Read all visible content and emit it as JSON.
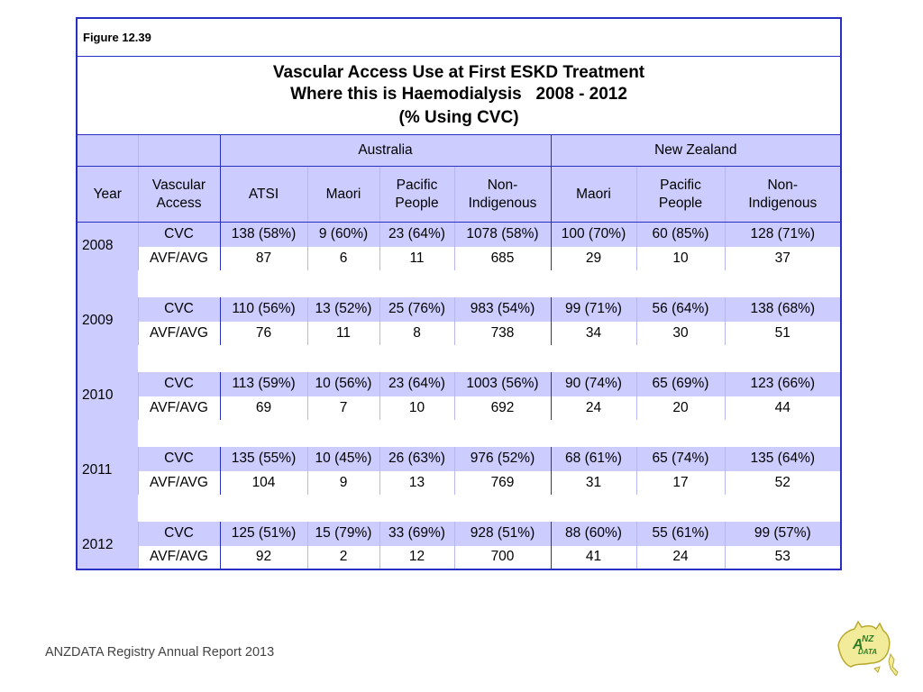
{
  "figure_label": "Figure 12.39",
  "title": {
    "line1": "Vascular Access Use at First ESKD Treatment",
    "line2": "Where this is Haemodialysis   2008 - 2012",
    "line3": "(% Using CVC)"
  },
  "regions": {
    "australia": "Australia",
    "new_zealand": "New Zealand"
  },
  "columns": {
    "year": "Year",
    "vascular_access": [
      "Vascular",
      "Access"
    ],
    "atsi": "ATSI",
    "au_maori": "Maori",
    "au_pacific": [
      "Pacific",
      "People"
    ],
    "au_non_indigenous": [
      "Non-",
      "Indigenous"
    ],
    "nz_maori": "Maori",
    "nz_pacific": [
      "Pacific",
      "People"
    ],
    "nz_non_indigenous": [
      "Non-",
      "Indigenous"
    ]
  },
  "rows": [
    {
      "year": "2008",
      "cvc": {
        "label": "CVC",
        "values": [
          "138 (58%)",
          "9 (60%)",
          "23 (64%)",
          "1078 (58%)",
          "100 (70%)",
          "60 (85%)",
          "128 (71%)"
        ]
      },
      "avf": {
        "label": "AVF/AVG",
        "values": [
          "87",
          "6",
          "11",
          "685",
          "29",
          "10",
          "37"
        ]
      }
    },
    {
      "year": "2009",
      "cvc": {
        "label": "CVC",
        "values": [
          "110 (56%)",
          "13 (52%)",
          "25 (76%)",
          "983 (54%)",
          "99 (71%)",
          "56 (64%)",
          "138 (68%)"
        ]
      },
      "avf": {
        "label": "AVF/AVG",
        "values": [
          "76",
          "11",
          "8",
          "738",
          "34",
          "30",
          "51"
        ]
      }
    },
    {
      "year": "2010",
      "cvc": {
        "label": "CVC",
        "values": [
          "113 (59%)",
          "10 (56%)",
          "23 (64%)",
          "1003 (56%)",
          "90 (74%)",
          "65 (69%)",
          "123 (66%)"
        ]
      },
      "avf": {
        "label": "AVF/AVG",
        "values": [
          "69",
          "7",
          "10",
          "692",
          "24",
          "20",
          "44"
        ]
      }
    },
    {
      "year": "2011",
      "cvc": {
        "label": "CVC",
        "values": [
          "135 (55%)",
          "10 (45%)",
          "26 (63%)",
          "976 (52%)",
          "68 (61%)",
          "65 (74%)",
          "135 (64%)"
        ]
      },
      "avf": {
        "label": "AVF/AVG",
        "values": [
          "104",
          "9",
          "13",
          "769",
          "31",
          "17",
          "52"
        ]
      }
    },
    {
      "year": "2012",
      "cvc": {
        "label": "CVC",
        "values": [
          "125 (51%)",
          "15 (79%)",
          "33 (69%)",
          "928 (51%)",
          "88 (60%)",
          "55 (61%)",
          "99 (57%)"
        ]
      },
      "avf": {
        "label": "AVF/AVG",
        "values": [
          "92",
          "2",
          "12",
          "700",
          "41",
          "24",
          "53"
        ]
      }
    }
  ],
  "footer": "ANZDATA Registry Annual Report 2013",
  "logo_text": "ANZDATA",
  "colors": {
    "border": "#2a2fc4",
    "band": "#ccccff",
    "logo_yellow": "#f2ec9a",
    "logo_green": "#3d8a2a"
  }
}
